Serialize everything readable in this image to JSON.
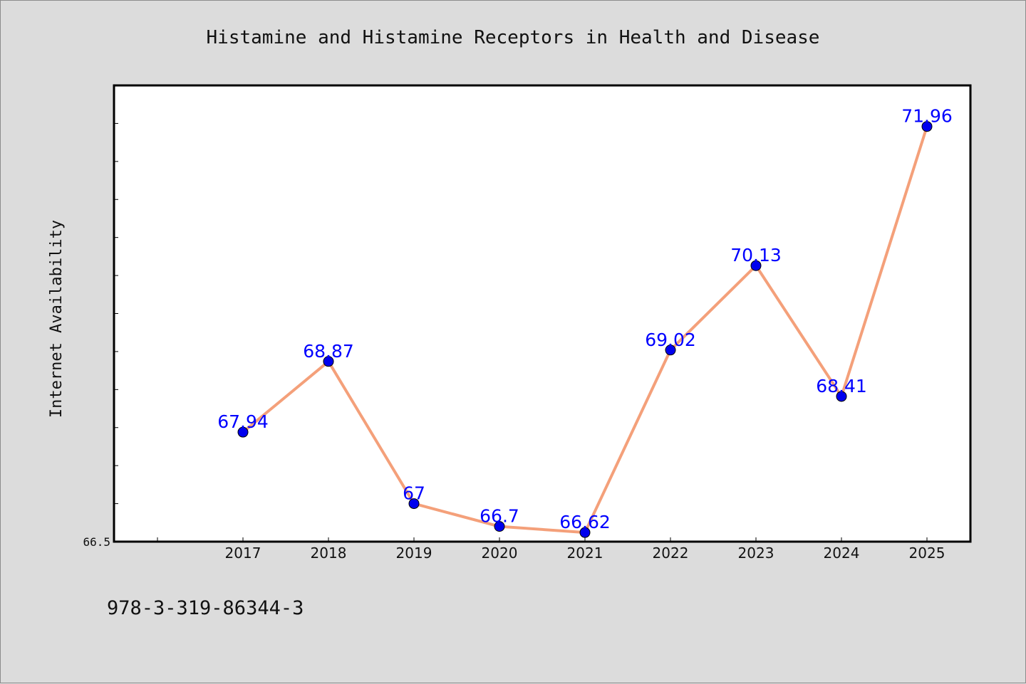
{
  "chart_data": {
    "type": "line",
    "title": "Histamine and Histamine Receptors in Health and Disease",
    "ylabel": "Internet Availability",
    "xlabel": "",
    "categories": [
      "2017",
      "2018",
      "2019",
      "2020",
      "2021",
      "2022",
      "2023",
      "2024",
      "2025"
    ],
    "series": [
      {
        "values": [
          67.94,
          68.87,
          67,
          66.7,
          66.62,
          69.02,
          70.13,
          68.41,
          71.96
        ]
      }
    ],
    "data_labels": [
      "67.94",
      "68.87",
      "67",
      "66.7",
      "66.62",
      "69.02",
      "70.13",
      "68.41",
      "71.96"
    ],
    "ylim": [
      66.5,
      72.5
    ],
    "y_tick_label": "66.5",
    "grid": false,
    "line_color": "#f4a07a",
    "marker_color": "#0000ee",
    "label_color": "#0000ff",
    "plot_background": "#ffffff",
    "figure_background": "#dcdcdc"
  },
  "footer": {
    "text": "978-3-319-86344-3"
  }
}
